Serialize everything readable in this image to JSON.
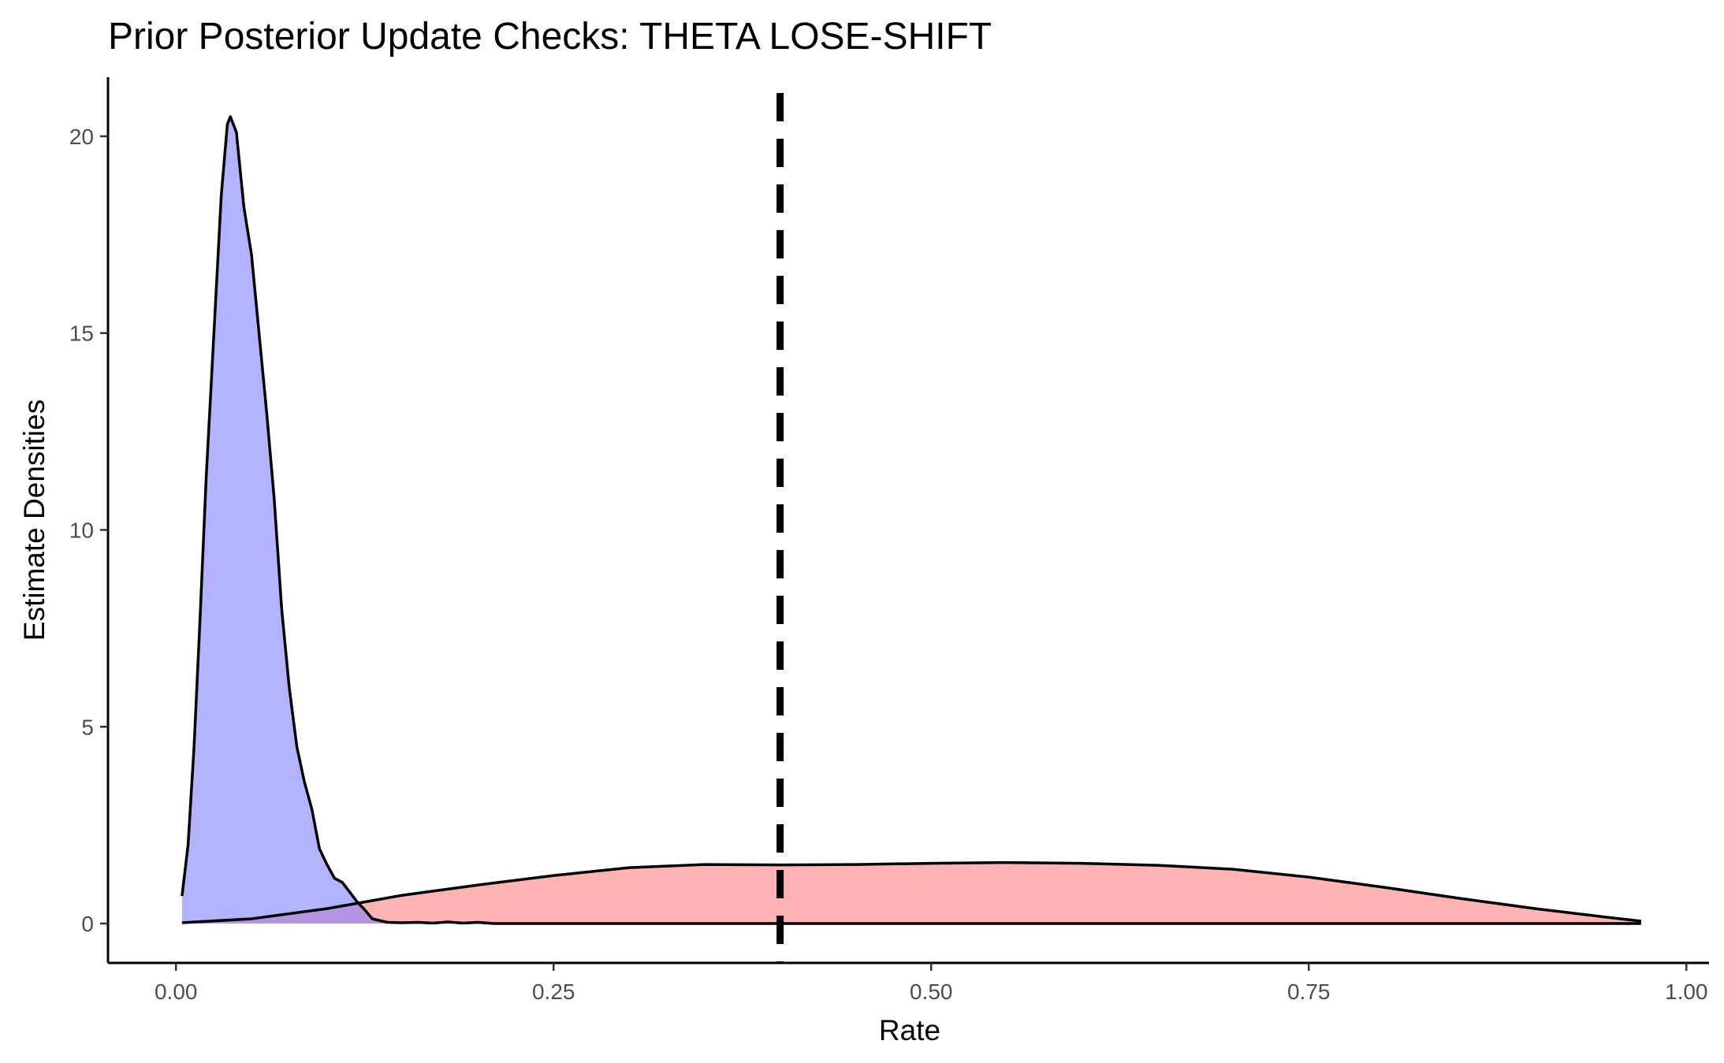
{
  "chart_data": {
    "type": "area",
    "title": "Prior Posterior Update Checks: THETA LOSE-SHIFT",
    "xlabel": "Rate",
    "ylabel": "Estimate Densities",
    "xlim": [
      -0.045,
      1.015
    ],
    "ylim": [
      -1.0,
      21.5
    ],
    "x_ticks": [
      0.0,
      0.25,
      0.5,
      0.75,
      1.0
    ],
    "x_tick_labels": [
      "0.00",
      "0.25",
      "0.50",
      "0.75",
      "1.00"
    ],
    "y_ticks": [
      0,
      5,
      10,
      15,
      20
    ],
    "y_tick_labels": [
      "0",
      "5",
      "10",
      "15",
      "20"
    ],
    "grid": false,
    "legend": "none",
    "vline": {
      "x": 0.4,
      "style": "dashed",
      "color": "#000000"
    },
    "series": [
      {
        "fill": "#FF8080",
        "fill_opacity": 0.6,
        "stroke": "#000000",
        "points": [
          [
            0.004,
            0.02
          ],
          [
            0.05,
            0.12
          ],
          [
            0.1,
            0.38
          ],
          [
            0.15,
            0.72
          ],
          [
            0.2,
            0.98
          ],
          [
            0.25,
            1.22
          ],
          [
            0.3,
            1.42
          ],
          [
            0.35,
            1.5
          ],
          [
            0.4,
            1.49
          ],
          [
            0.45,
            1.5
          ],
          [
            0.5,
            1.53
          ],
          [
            0.55,
            1.55
          ],
          [
            0.6,
            1.53
          ],
          [
            0.65,
            1.48
          ],
          [
            0.7,
            1.38
          ],
          [
            0.75,
            1.18
          ],
          [
            0.8,
            0.92
          ],
          [
            0.85,
            0.64
          ],
          [
            0.9,
            0.38
          ],
          [
            0.95,
            0.15
          ],
          [
            0.97,
            0.06
          ]
        ]
      },
      {
        "fill": "#8080FF",
        "fill_opacity": 0.6,
        "stroke": "#000000",
        "points": [
          [
            0.004,
            0.7
          ],
          [
            0.008,
            2.0
          ],
          [
            0.012,
            4.5
          ],
          [
            0.016,
            7.8
          ],
          [
            0.02,
            11.3
          ],
          [
            0.025,
            14.9
          ],
          [
            0.03,
            18.5
          ],
          [
            0.034,
            20.3
          ],
          [
            0.036,
            20.5
          ],
          [
            0.04,
            20.1
          ],
          [
            0.045,
            18.2
          ],
          [
            0.05,
            17.0
          ],
          [
            0.055,
            15.0
          ],
          [
            0.06,
            13.0
          ],
          [
            0.065,
            10.8
          ],
          [
            0.07,
            8.0
          ],
          [
            0.075,
            6.0
          ],
          [
            0.08,
            4.5
          ],
          [
            0.085,
            3.6
          ],
          [
            0.09,
            2.9
          ],
          [
            0.095,
            1.9
          ],
          [
            0.1,
            1.5
          ],
          [
            0.105,
            1.15
          ],
          [
            0.11,
            1.05
          ],
          [
            0.115,
            0.8
          ],
          [
            0.12,
            0.55
          ],
          [
            0.125,
            0.35
          ],
          [
            0.13,
            0.12
          ],
          [
            0.14,
            0.03
          ],
          [
            0.15,
            0.02
          ],
          [
            0.16,
            0.03
          ],
          [
            0.17,
            0.01
          ],
          [
            0.18,
            0.04
          ],
          [
            0.19,
            0.01
          ],
          [
            0.2,
            0.03
          ],
          [
            0.21,
            0.0
          ],
          [
            0.3,
            0.0
          ],
          [
            0.5,
            0.0
          ],
          [
            0.7,
            0.0
          ],
          [
            0.9,
            0.0
          ],
          [
            0.97,
            0.0
          ]
        ]
      }
    ]
  }
}
